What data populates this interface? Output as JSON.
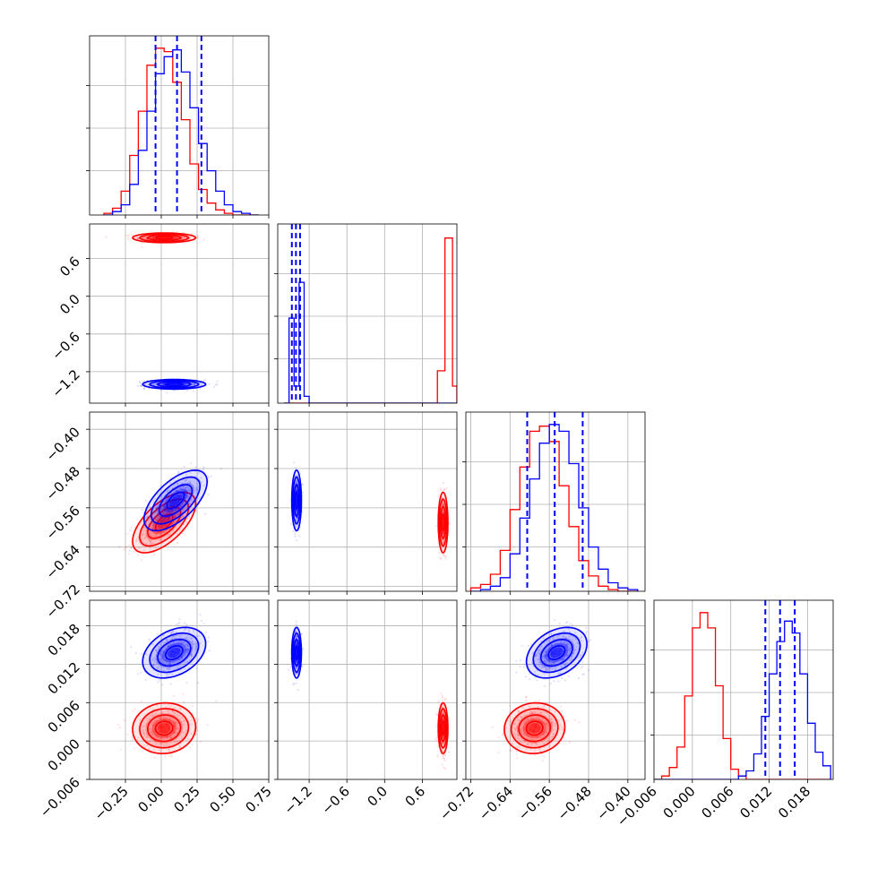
{
  "chart_data": {
    "type": "corner",
    "title": "",
    "grid": true,
    "colors": {
      "series_a": "#ff0000",
      "series_b": "#0000ff"
    },
    "series": [
      {
        "color": "#ff0000"
      },
      {
        "color": "#0000ff"
      }
    ],
    "parameters": [
      {
        "range": [
          -0.5,
          0.75
        ],
        "ticks": [
          -0.25,
          0.0,
          0.25,
          0.5,
          0.75
        ],
        "tick_labels": [
          "−0.25",
          "0.00",
          "0.25",
          "0.50",
          "0.75"
        ]
      },
      {
        "range": [
          -1.7,
          1.15
        ],
        "ticks": [
          -1.2,
          -0.6,
          0.0,
          0.6
        ],
        "tick_labels": [
          "−1.2",
          "−0.6",
          "0.0",
          "0.6"
        ]
      },
      {
        "range": [
          -0.73,
          -0.365
        ],
        "ticks": [
          -0.72,
          -0.64,
          -0.56,
          -0.48,
          -0.4
        ],
        "tick_labels": [
          "−0.72",
          "−0.64",
          "−0.56",
          "−0.48",
          "−0.40"
        ]
      },
      {
        "range": [
          -0.006,
          0.022
        ],
        "ticks": [
          -0.006,
          0.0,
          0.006,
          0.012,
          0.018
        ],
        "tick_labels": [
          "−0.006",
          "0.000",
          "0.006",
          "0.012",
          "0.018"
        ]
      }
    ],
    "histograms": [
      {
        "quantiles_blue": [
          -0.04,
          0.11,
          0.28
        ],
        "edges": [
          -0.4,
          -0.34,
          -0.28,
          -0.22,
          -0.16,
          -0.1,
          -0.04,
          0.02,
          0.08,
          0.14,
          0.2,
          0.26,
          0.32,
          0.38,
          0.44,
          0.5,
          0.56,
          0.62,
          0.68
        ],
        "red": [
          0.01,
          0.04,
          0.14,
          0.35,
          0.61,
          0.88,
          0.98,
          0.96,
          0.78,
          0.56,
          0.3,
          0.15,
          0.07,
          0.03,
          0.01,
          0.0,
          0.0,
          0.0
        ],
        "blue": [
          0.0,
          0.02,
          0.06,
          0.18,
          0.38,
          0.61,
          0.83,
          0.93,
          0.97,
          0.84,
          0.63,
          0.42,
          0.26,
          0.14,
          0.06,
          0.02,
          0.01,
          0.0
        ]
      },
      {
        "quantiles_blue": [
          -1.475,
          -1.41,
          -1.345
        ],
        "edges": [
          -1.6,
          -1.52,
          -1.44,
          -1.36,
          -1.28,
          -1.2,
          -0.4,
          0.72,
          0.84,
          0.96,
          1.08,
          1.15
        ],
        "red": [
          0,
          0,
          0,
          0,
          0,
          0,
          0,
          0.0,
          0.19,
          0.97,
          0.1
        ],
        "blue": [
          0,
          0.5,
          0.1,
          0.71,
          0.04,
          0.0,
          0,
          0,
          0,
          0,
          0
        ]
      },
      {
        "quantiles_blue": [
          -0.605,
          -0.549,
          -0.492
        ],
        "edges": [
          -0.72,
          -0.7,
          -0.68,
          -0.66,
          -0.64,
          -0.62,
          -0.6,
          -0.58,
          -0.56,
          -0.54,
          -0.52,
          -0.5,
          -0.48,
          -0.46,
          -0.44,
          -0.42,
          -0.4,
          -0.38
        ],
        "red": [
          0.02,
          0.04,
          0.1,
          0.24,
          0.48,
          0.73,
          0.94,
          0.97,
          0.88,
          0.62,
          0.38,
          0.18,
          0.09,
          0.03,
          0.01,
          0.0,
          0.0
        ],
        "blue": [
          0.0,
          0.01,
          0.03,
          0.08,
          0.22,
          0.43,
          0.66,
          0.87,
          0.98,
          0.94,
          0.75,
          0.49,
          0.26,
          0.13,
          0.05,
          0.02,
          0.01
        ]
      },
      {
        "quantiles_blue": [
          0.0114,
          0.0137,
          0.016
        ],
        "edges": [
          -0.006,
          -0.0048,
          -0.0036,
          -0.0024,
          -0.0012,
          0.0,
          0.0012,
          0.0024,
          0.0036,
          0.0048,
          0.006,
          0.0072,
          0.0084,
          0.0096,
          0.0108,
          0.012,
          0.0132,
          0.0144,
          0.0156,
          0.0168,
          0.018,
          0.0192,
          0.0204,
          0.0216
        ],
        "red": [
          0.0,
          0.02,
          0.07,
          0.19,
          0.49,
          0.89,
          0.98,
          0.89,
          0.55,
          0.24,
          0.06,
          0.02,
          0.0,
          0.0,
          0.0,
          0.0,
          0.0,
          0.0,
          0.0,
          0.0,
          0.0,
          0.0,
          0.0
        ],
        "blue": [
          0.0,
          0.0,
          0.0,
          0.0,
          0.0,
          0.0,
          0.0,
          0.0,
          0.0,
          0.0,
          0.0,
          0.02,
          0.05,
          0.15,
          0.37,
          0.62,
          0.81,
          0.93,
          0.86,
          0.62,
          0.33,
          0.16,
          0.08
        ]
      }
    ],
    "pairs": [
      {
        "x": 0,
        "y": 1,
        "red": {
          "mean": [
            0.02,
            0.93
          ],
          "sd": [
            0.1,
            0.035
          ],
          "rho": 0.0
        },
        "blue": {
          "mean": [
            0.09,
            -1.4
          ],
          "sd": [
            0.1,
            0.035
          ],
          "rho": 0.0
        }
      },
      {
        "x": 0,
        "y": 2,
        "red": {
          "mean": [
            0.02,
            -0.59
          ],
          "sd": [
            0.1,
            0.028
          ],
          "rho": 0.62
        },
        "blue": {
          "mean": [
            0.1,
            -0.545
          ],
          "sd": [
            0.1,
            0.028
          ],
          "rho": 0.62
        }
      },
      {
        "x": 1,
        "y": 2,
        "red": {
          "mean": [
            0.93,
            -0.59
          ],
          "sd": [
            0.035,
            0.028
          ],
          "rho": 0.0
        },
        "blue": {
          "mean": [
            -1.4,
            -0.545
          ],
          "sd": [
            0.035,
            0.028
          ],
          "rho": 0.0
        }
      },
      {
        "x": 0,
        "y": 3,
        "red": {
          "mean": [
            0.02,
            0.002
          ],
          "sd": [
            0.1,
            0.0018
          ],
          "rho": 0.05
        },
        "blue": {
          "mean": [
            0.09,
            0.0138
          ],
          "sd": [
            0.1,
            0.0018
          ],
          "rho": 0.35
        }
      },
      {
        "x": 1,
        "y": 3,
        "red": {
          "mean": [
            0.93,
            0.002
          ],
          "sd": [
            0.035,
            0.0018
          ],
          "rho": 0.0
        },
        "blue": {
          "mean": [
            -1.4,
            0.0138
          ],
          "sd": [
            0.035,
            0.0018
          ],
          "rho": 0.0
        }
      },
      {
        "x": 2,
        "y": 3,
        "red": {
          "mean": [
            -0.59,
            0.002
          ],
          "sd": [
            0.028,
            0.0018
          ],
          "rho": 0.05
        },
        "blue": {
          "mean": [
            -0.545,
            0.0138
          ],
          "sd": [
            0.028,
            0.0018
          ],
          "rho": 0.35
        }
      }
    ]
  }
}
